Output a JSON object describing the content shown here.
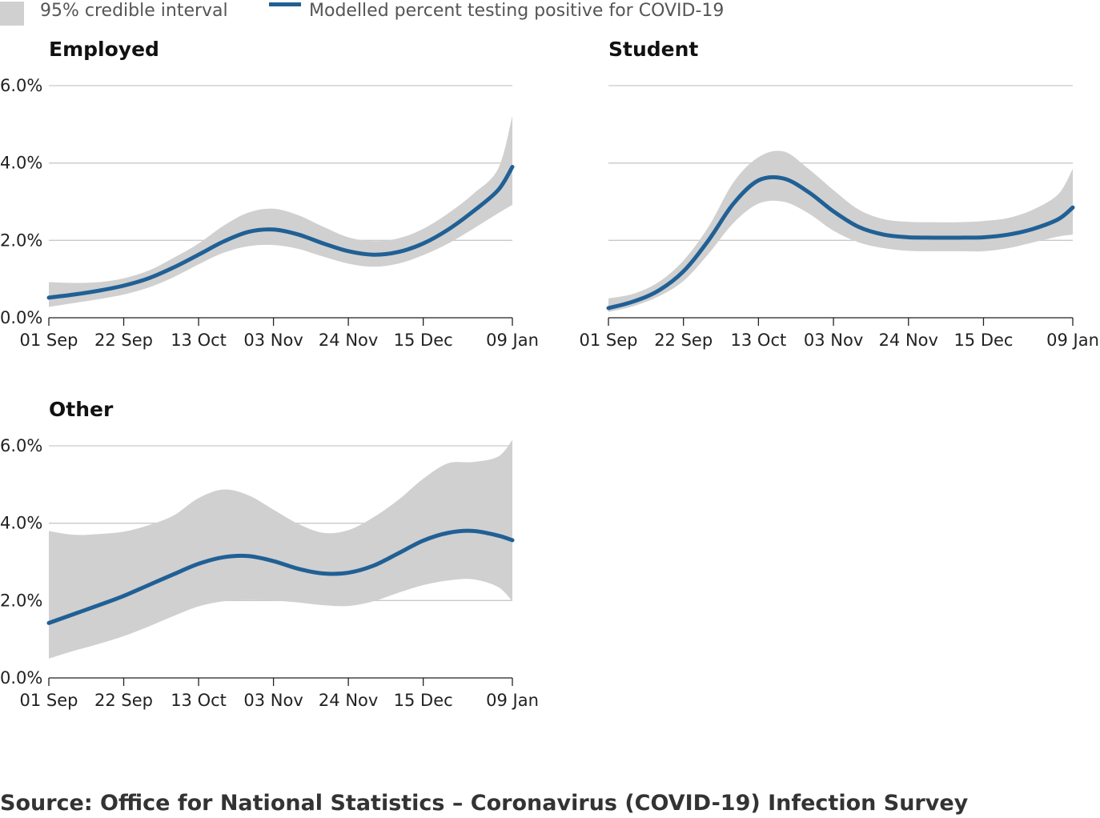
{
  "legend": {
    "band_label": "95% credible interval",
    "line_label": "Modelled percent testing positive for COVID-19"
  },
  "source": "Source: Office for National Statistics – Coronavirus (COVID-19) Infection Survey",
  "colors": {
    "line": "#206095",
    "band": "#d0d0d0",
    "grid": "#c9c9c9"
  },
  "chart_data": [
    {
      "type": "line",
      "title": "Employed",
      "x": [
        "2020-09-01",
        "2020-09-08",
        "2020-09-15",
        "2020-09-22",
        "2020-09-29",
        "2020-10-06",
        "2020-10-13",
        "2020-10-20",
        "2020-10-27",
        "2020-11-03",
        "2020-11-10",
        "2020-11-17",
        "2020-11-24",
        "2020-12-01",
        "2020-12-08",
        "2020-12-15",
        "2020-12-22",
        "2020-12-29",
        "2021-01-05",
        "2021-01-09"
      ],
      "xticks": [
        "01 Sep",
        "22 Sep",
        "13 Oct",
        "03 Nov",
        "24 Nov",
        "15 Dec",
        "09 Jan"
      ],
      "yticks": [
        "0.0%",
        "2.0%",
        "4.0%",
        "6.0%"
      ],
      "ylim": [
        0,
        6
      ],
      "series": [
        {
          "name": "Modelled percent testing positive for COVID-19",
          "values": [
            0.52,
            0.6,
            0.7,
            0.83,
            1.02,
            1.3,
            1.63,
            1.97,
            2.22,
            2.28,
            2.15,
            1.92,
            1.72,
            1.63,
            1.7,
            1.92,
            2.28,
            2.75,
            3.3,
            3.9
          ]
        },
        {
          "name": "95% credible interval",
          "lower": [
            0.28,
            0.38,
            0.48,
            0.6,
            0.78,
            1.05,
            1.38,
            1.68,
            1.85,
            1.88,
            1.78,
            1.58,
            1.4,
            1.32,
            1.4,
            1.62,
            1.92,
            2.3,
            2.7,
            2.92
          ],
          "upper": [
            0.92,
            0.9,
            0.92,
            1.02,
            1.22,
            1.55,
            1.92,
            2.38,
            2.72,
            2.82,
            2.65,
            2.35,
            2.08,
            1.98,
            2.05,
            2.3,
            2.7,
            3.2,
            3.85,
            5.22
          ]
        }
      ]
    },
    {
      "type": "line",
      "title": "Student",
      "x": [
        "2020-09-01",
        "2020-09-08",
        "2020-09-15",
        "2020-09-22",
        "2020-09-29",
        "2020-10-06",
        "2020-10-13",
        "2020-10-20",
        "2020-10-27",
        "2020-11-03",
        "2020-11-10",
        "2020-11-17",
        "2020-11-24",
        "2020-12-01",
        "2020-12-08",
        "2020-12-15",
        "2020-12-22",
        "2020-12-29",
        "2021-01-05",
        "2021-01-09"
      ],
      "xticks": [
        "01 Sep",
        "22 Sep",
        "13 Oct",
        "03 Nov",
        "24 Nov",
        "15 Dec",
        "09 Jan"
      ],
      "yticks": [
        "0.0%",
        "2.0%",
        "4.0%",
        "6.0%"
      ],
      "ylim": [
        0,
        6
      ],
      "series": [
        {
          "name": "Modelled percent testing positive for COVID-19",
          "values": [
            0.25,
            0.42,
            0.7,
            1.2,
            2.0,
            2.95,
            3.55,
            3.6,
            3.25,
            2.75,
            2.35,
            2.15,
            2.08,
            2.07,
            2.07,
            2.08,
            2.15,
            2.3,
            2.55,
            2.85
          ]
        },
        {
          "name": "95% credible interval",
          "lower": [
            0.15,
            0.3,
            0.55,
            0.95,
            1.65,
            2.45,
            2.95,
            3.0,
            2.7,
            2.25,
            1.95,
            1.8,
            1.73,
            1.72,
            1.72,
            1.72,
            1.8,
            1.95,
            2.1,
            2.15
          ],
          "upper": [
            0.5,
            0.62,
            0.92,
            1.48,
            2.35,
            3.5,
            4.15,
            4.3,
            3.85,
            3.3,
            2.8,
            2.55,
            2.48,
            2.47,
            2.47,
            2.5,
            2.58,
            2.8,
            3.2,
            3.85
          ]
        }
      ]
    },
    {
      "type": "line",
      "title": "Other",
      "x": [
        "2020-09-01",
        "2020-09-08",
        "2020-09-15",
        "2020-09-22",
        "2020-09-29",
        "2020-10-06",
        "2020-10-13",
        "2020-10-20",
        "2020-10-27",
        "2020-11-03",
        "2020-11-10",
        "2020-11-17",
        "2020-11-24",
        "2020-12-01",
        "2020-12-08",
        "2020-12-15",
        "2020-12-22",
        "2020-12-29",
        "2021-01-05",
        "2021-01-09"
      ],
      "xticks": [
        "01 Sep",
        "22 Sep",
        "13 Oct",
        "03 Nov",
        "24 Nov",
        "15 Dec",
        "09 Jan"
      ],
      "yticks": [
        "0.0%",
        "2.0%",
        "4.0%",
        "6.0%"
      ],
      "ylim": [
        0,
        6
      ],
      "series": [
        {
          "name": "Modelled percent testing positive for COVID-19",
          "values": [
            1.42,
            1.65,
            1.88,
            2.12,
            2.4,
            2.68,
            2.95,
            3.12,
            3.15,
            3.02,
            2.82,
            2.7,
            2.72,
            2.9,
            3.22,
            3.55,
            3.75,
            3.8,
            3.68,
            3.56
          ]
        },
        {
          "name": "95% credible interval",
          "lower": [
            0.5,
            0.7,
            0.88,
            1.08,
            1.33,
            1.6,
            1.85,
            1.98,
            2.02,
            2.0,
            1.95,
            1.88,
            1.86,
            1.98,
            2.2,
            2.4,
            2.52,
            2.55,
            2.35,
            1.98
          ],
          "upper": [
            3.8,
            3.7,
            3.72,
            3.78,
            3.95,
            4.2,
            4.65,
            4.87,
            4.72,
            4.35,
            3.98,
            3.75,
            3.82,
            4.15,
            4.6,
            5.15,
            5.55,
            5.58,
            5.72,
            6.15
          ]
        }
      ]
    }
  ]
}
